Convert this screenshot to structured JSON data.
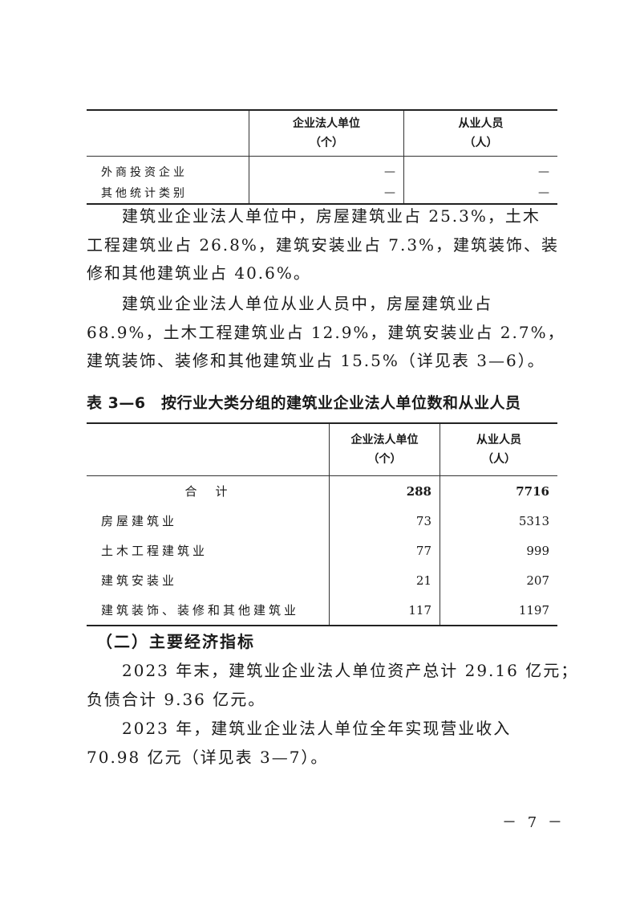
{
  "table_top": {
    "headers": [
      {
        "line1": "企业法人单位",
        "line2": "（个）"
      },
      {
        "line1": "从业人员",
        "line2": "（人）"
      }
    ],
    "rows": [
      {
        "label": "外商投资企业",
        "units": "—",
        "employees": "—"
      },
      {
        "label": "其他统计类别",
        "units": "—",
        "employees": "—"
      }
    ]
  },
  "paragraph1": {
    "lines": [
      "　　建筑业企业法人单位中，房屋建筑业占 25.3%，土木",
      "工程建筑业占 26.8%，建筑安装业占 7.3%，建筑装饰、装",
      "修和其他建筑业占 40.6%。"
    ]
  },
  "paragraph2": {
    "lines": [
      "　　建筑业企业法人单位从业人员中，房屋建筑业占",
      "68.9%，土木工程建筑业占 12.9%，建筑安装业占 2.7%，",
      "建筑装饰、装修和其他建筑业占 15.5%（详见表 3—6）。"
    ]
  },
  "table_3_6": {
    "title": "表 3—6　按行业大类分组的建筑业企业法人单位数和从业人员",
    "headers": [
      {
        "line1": "企业法人单位",
        "line2": "（个）"
      },
      {
        "line1": "从业人员",
        "line2": "（人）"
      }
    ],
    "total": {
      "label": "合　计",
      "units": "288",
      "employees": "7716"
    },
    "rows": [
      {
        "label": "房屋建筑业",
        "units": "73",
        "employees": "5313"
      },
      {
        "label": "土木工程建筑业",
        "units": "77",
        "employees": "999"
      },
      {
        "label": "建筑安装业",
        "units": "21",
        "employees": "207"
      },
      {
        "label": "建筑装饰、装修和其他建筑业",
        "units": "117",
        "employees": "1197"
      }
    ]
  },
  "section2": {
    "heading": "　（二）主要经济指标"
  },
  "paragraph3": {
    "lines": [
      "　　2023 年末，建筑业企业法人单位资产总计 29.16 亿元；",
      "负债合计 9.36 亿元。"
    ]
  },
  "paragraph4": {
    "lines": [
      "　　2023 年，建筑业企业法人单位全年实现营业收入",
      "70.98 亿元（详见表 3—7）。"
    ]
  },
  "page_number": "－ 7 －"
}
